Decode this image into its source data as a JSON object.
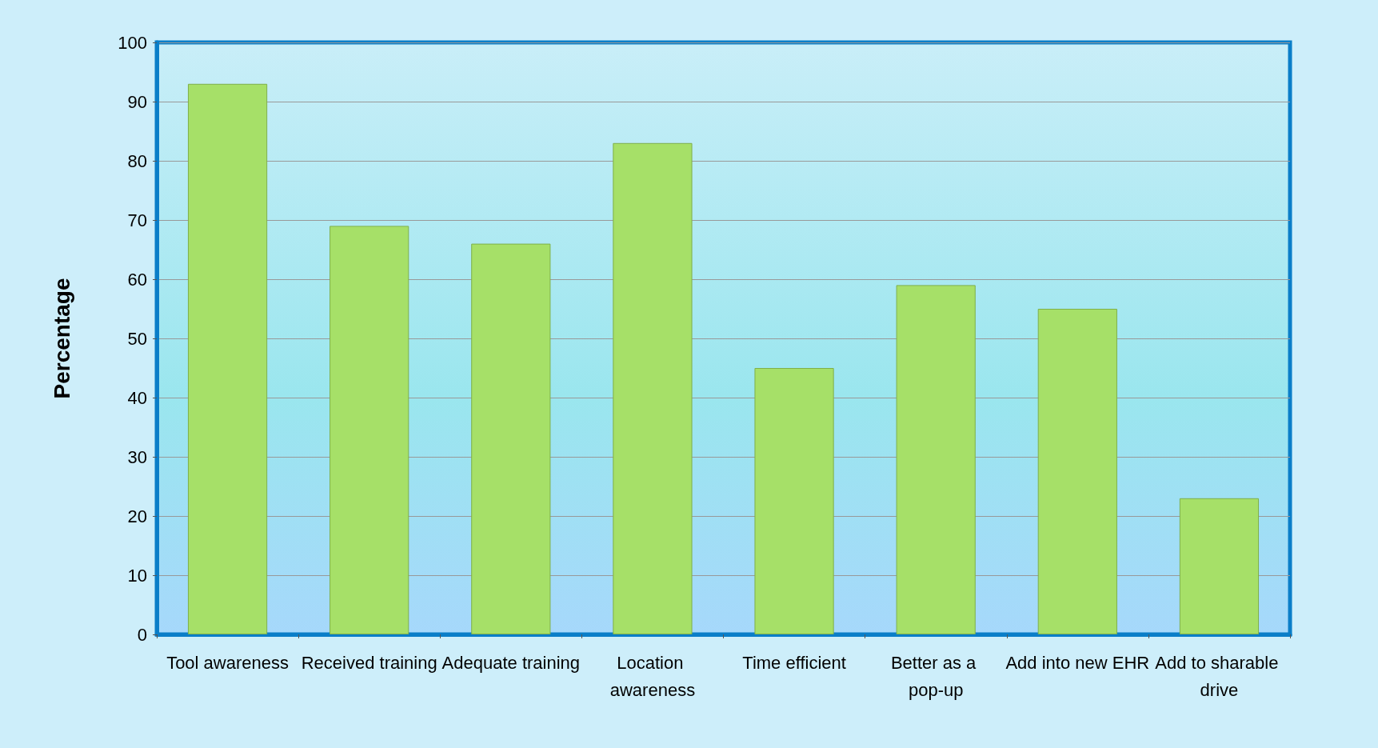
{
  "chart_data": {
    "type": "bar",
    "ylabel": "Percentage",
    "categories": [
      "Tool awareness",
      "Received training",
      "Adequate training",
      "Location awareness",
      "Time efficient",
      "Better as a pop-up",
      "Add into new EHR",
      "Add to sharable drive"
    ],
    "values": [
      93,
      69,
      66,
      83,
      45,
      59,
      55,
      23
    ],
    "color": "#a6e068",
    "ylim": [
      0,
      100
    ],
    "yticks": [
      0,
      10,
      20,
      30,
      40,
      50,
      60,
      70,
      80,
      90,
      100
    ],
    "grid": "y"
  }
}
